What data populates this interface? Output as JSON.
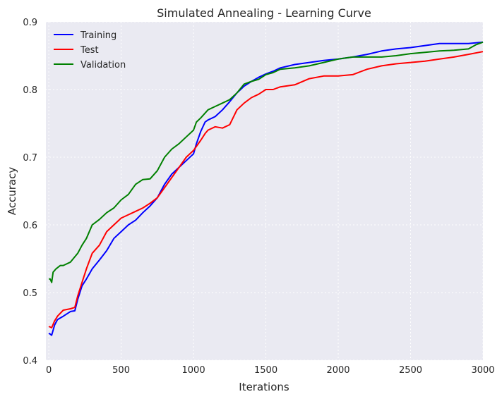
{
  "chart_data": {
    "type": "line",
    "title": "Simulated Annealing - Learning Curve",
    "xlabel": "Iterations",
    "ylabel": "Accuracy",
    "xlim": [
      -20,
      3000
    ],
    "ylim": [
      0.4,
      0.9
    ],
    "xticks": [
      0,
      500,
      1000,
      1500,
      2000,
      2500,
      3000
    ],
    "yticks": [
      0.4,
      0.5,
      0.6,
      0.7,
      0.8,
      0.9
    ],
    "grid": true,
    "legend_position": "top-left",
    "background": "#eaeaf2",
    "series": [
      {
        "name": "Training",
        "color": "#0000ff",
        "x": [
          0,
          20,
          40,
          60,
          100,
          150,
          180,
          200,
          230,
          260,
          300,
          350,
          400,
          450,
          500,
          550,
          600,
          650,
          700,
          750,
          800,
          850,
          900,
          950,
          1000,
          1020,
          1050,
          1080,
          1100,
          1150,
          1200,
          1250,
          1300,
          1350,
          1400,
          1450,
          1500,
          1550,
          1600,
          1700,
          1800,
          1900,
          2000,
          2100,
          2200,
          2300,
          2400,
          2500,
          2600,
          2700,
          2800,
          2900,
          3000
        ],
        "y": [
          0.44,
          0.437,
          0.452,
          0.46,
          0.465,
          0.472,
          0.473,
          0.49,
          0.51,
          0.52,
          0.535,
          0.548,
          0.562,
          0.58,
          0.59,
          0.6,
          0.607,
          0.618,
          0.628,
          0.64,
          0.66,
          0.675,
          0.685,
          0.695,
          0.705,
          0.72,
          0.738,
          0.752,
          0.755,
          0.76,
          0.77,
          0.782,
          0.795,
          0.805,
          0.812,
          0.818,
          0.823,
          0.827,
          0.832,
          0.837,
          0.84,
          0.843,
          0.845,
          0.848,
          0.852,
          0.857,
          0.86,
          0.862,
          0.865,
          0.868,
          0.868,
          0.868,
          0.87
        ]
      },
      {
        "name": "Test",
        "color": "#ff0000",
        "x": [
          0,
          20,
          40,
          60,
          100,
          150,
          180,
          200,
          230,
          260,
          300,
          350,
          400,
          450,
          500,
          550,
          600,
          650,
          700,
          750,
          800,
          850,
          900,
          950,
          1000,
          1050,
          1080,
          1100,
          1150,
          1200,
          1250,
          1300,
          1350,
          1400,
          1450,
          1500,
          1550,
          1600,
          1700,
          1800,
          1900,
          2000,
          2100,
          2150,
          2200,
          2300,
          2400,
          2500,
          2600,
          2700,
          2800,
          2900,
          3000
        ],
        "y": [
          0.45,
          0.448,
          0.458,
          0.465,
          0.474,
          0.476,
          0.478,
          0.495,
          0.515,
          0.535,
          0.558,
          0.57,
          0.59,
          0.6,
          0.61,
          0.615,
          0.62,
          0.625,
          0.632,
          0.64,
          0.655,
          0.67,
          0.685,
          0.7,
          0.71,
          0.725,
          0.735,
          0.74,
          0.745,
          0.743,
          0.748,
          0.77,
          0.78,
          0.788,
          0.793,
          0.8,
          0.8,
          0.804,
          0.807,
          0.816,
          0.82,
          0.82,
          0.822,
          0.826,
          0.83,
          0.835,
          0.838,
          0.84,
          0.842,
          0.845,
          0.848,
          0.852,
          0.856
        ]
      },
      {
        "name": "Validation",
        "color": "#008000",
        "x": [
          0,
          10,
          20,
          30,
          50,
          80,
          100,
          150,
          200,
          230,
          260,
          300,
          350,
          400,
          450,
          500,
          550,
          600,
          650,
          700,
          750,
          800,
          850,
          900,
          950,
          1000,
          1020,
          1050,
          1100,
          1150,
          1200,
          1250,
          1300,
          1350,
          1400,
          1450,
          1500,
          1550,
          1600,
          1700,
          1800,
          1900,
          2000,
          2100,
          2200,
          2300,
          2400,
          2500,
          2600,
          2700,
          2800,
          2900,
          2950,
          3000
        ],
        "y": [
          0.52,
          0.52,
          0.515,
          0.53,
          0.535,
          0.54,
          0.54,
          0.545,
          0.558,
          0.57,
          0.58,
          0.6,
          0.608,
          0.618,
          0.625,
          0.637,
          0.645,
          0.66,
          0.667,
          0.668,
          0.68,
          0.7,
          0.712,
          0.72,
          0.73,
          0.74,
          0.752,
          0.758,
          0.77,
          0.775,
          0.78,
          0.785,
          0.795,
          0.808,
          0.812,
          0.815,
          0.822,
          0.825,
          0.83,
          0.832,
          0.835,
          0.84,
          0.845,
          0.848,
          0.848,
          0.848,
          0.85,
          0.853,
          0.855,
          0.857,
          0.858,
          0.86,
          0.866,
          0.87
        ]
      }
    ]
  }
}
